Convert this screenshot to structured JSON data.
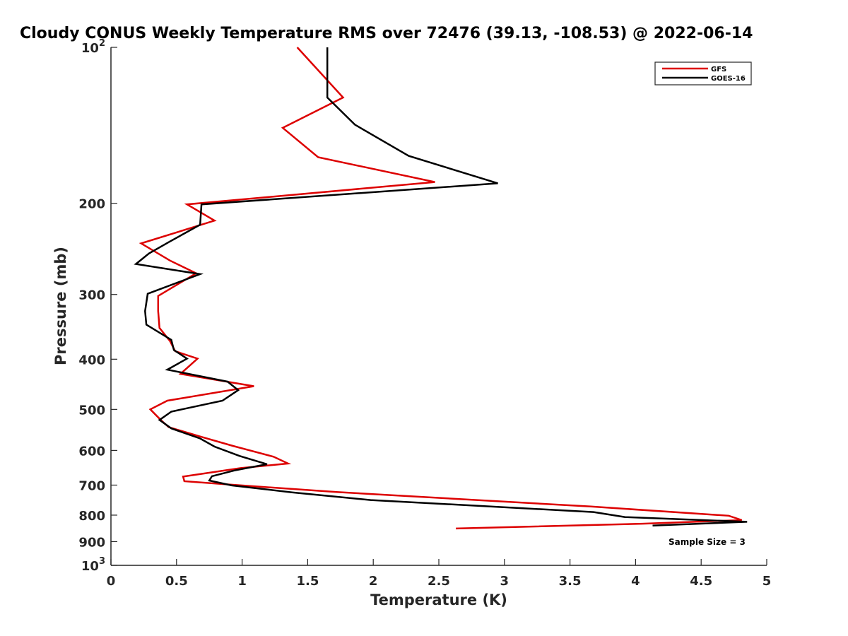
{
  "chart_data": {
    "type": "line",
    "title": "Cloudy CONUS Weekly Temperature RMS over 72476 (39.13, -108.53) @ 2022-06-14",
    "xlabel": "Temperature (K)",
    "ylabel": "Pressure (mb)",
    "xlim": [
      0,
      5
    ],
    "ylim": [
      100,
      1000
    ],
    "y_scale": "log",
    "y_reversed": true,
    "x_ticks": [
      {
        "value": 0,
        "label": "0"
      },
      {
        "value": 0.5,
        "label": "0.5"
      },
      {
        "value": 1,
        "label": "1"
      },
      {
        "value": 1.5,
        "label": "1.5"
      },
      {
        "value": 2,
        "label": "2"
      },
      {
        "value": 2.5,
        "label": "2.5"
      },
      {
        "value": 3,
        "label": "3"
      },
      {
        "value": 3.5,
        "label": "3.5"
      },
      {
        "value": 4,
        "label": "4"
      },
      {
        "value": 4.5,
        "label": "4.5"
      },
      {
        "value": 5,
        "label": "5"
      }
    ],
    "y_ticks": [
      {
        "value": 100,
        "base": "10",
        "exp": "2"
      },
      {
        "value": 200,
        "label": "200"
      },
      {
        "value": 300,
        "label": "300"
      },
      {
        "value": 400,
        "label": "400"
      },
      {
        "value": 500,
        "label": "500"
      },
      {
        "value": 600,
        "label": "600"
      },
      {
        "value": 700,
        "label": "700"
      },
      {
        "value": 800,
        "label": "800"
      },
      {
        "value": 900,
        "label": "900"
      },
      {
        "value": 1000,
        "base": "10",
        "exp": "3"
      }
    ],
    "grid": false,
    "legend_position": "top-right",
    "annotation": "Sample Size = 3",
    "series": [
      {
        "name": "GFS",
        "color": "#dd0000",
        "points": [
          [
            1.42,
            100
          ],
          [
            1.77,
            125
          ],
          [
            1.31,
            143
          ],
          [
            1.58,
            163
          ],
          [
            2.47,
            182
          ],
          [
            0.58,
            201
          ],
          [
            0.79,
            216
          ],
          [
            0.23,
            239
          ],
          [
            0.45,
            258
          ],
          [
            0.65,
            273
          ],
          [
            0.36,
            302
          ],
          [
            0.36,
            323
          ],
          [
            0.37,
            348
          ],
          [
            0.45,
            369
          ],
          [
            0.49,
            386
          ],
          [
            0.66,
            399
          ],
          [
            0.53,
            427
          ],
          [
            1.09,
            451
          ],
          [
            0.43,
            481
          ],
          [
            0.3,
            500
          ],
          [
            0.38,
            524
          ],
          [
            0.44,
            541
          ],
          [
            0.68,
            564
          ],
          [
            0.93,
            588
          ],
          [
            1.24,
            617
          ],
          [
            1.35,
            636
          ],
          [
            0.99,
            649
          ],
          [
            0.55,
            674
          ],
          [
            0.56,
            688
          ],
          [
            0.89,
            698
          ],
          [
            1.72,
            722
          ],
          [
            3.66,
            770
          ],
          [
            4.71,
            802
          ],
          [
            4.81,
            818
          ],
          [
            4.05,
            831
          ],
          [
            2.63,
            849
          ]
        ]
      },
      {
        "name": "GOES-16",
        "color": "#000000",
        "points": [
          [
            1.65,
            100
          ],
          [
            1.65,
            125
          ],
          [
            1.86,
            141
          ],
          [
            2.27,
            162
          ],
          [
            2.95,
            183
          ],
          [
            0.69,
            201
          ],
          [
            0.68,
            220
          ],
          [
            0.45,
            237
          ],
          [
            0.29,
            250
          ],
          [
            0.19,
            262
          ],
          [
            0.68,
            274
          ],
          [
            0.28,
            299
          ],
          [
            0.26,
            323
          ],
          [
            0.27,
            343
          ],
          [
            0.46,
            367
          ],
          [
            0.48,
            384
          ],
          [
            0.58,
            399
          ],
          [
            0.43,
            419
          ],
          [
            0.89,
            442
          ],
          [
            0.97,
            459
          ],
          [
            0.85,
            481
          ],
          [
            0.46,
            505
          ],
          [
            0.37,
            524
          ],
          [
            0.46,
            544
          ],
          [
            0.68,
            569
          ],
          [
            0.79,
            590
          ],
          [
            0.98,
            615
          ],
          [
            1.19,
            638
          ],
          [
            0.94,
            656
          ],
          [
            0.77,
            673
          ],
          [
            0.75,
            686
          ],
          [
            0.92,
            701
          ],
          [
            1.38,
            723
          ],
          [
            1.98,
            748
          ],
          [
            3.68,
            789
          ],
          [
            3.92,
            807
          ],
          [
            4.85,
            824
          ],
          [
            4.13,
            838
          ]
        ]
      }
    ]
  }
}
